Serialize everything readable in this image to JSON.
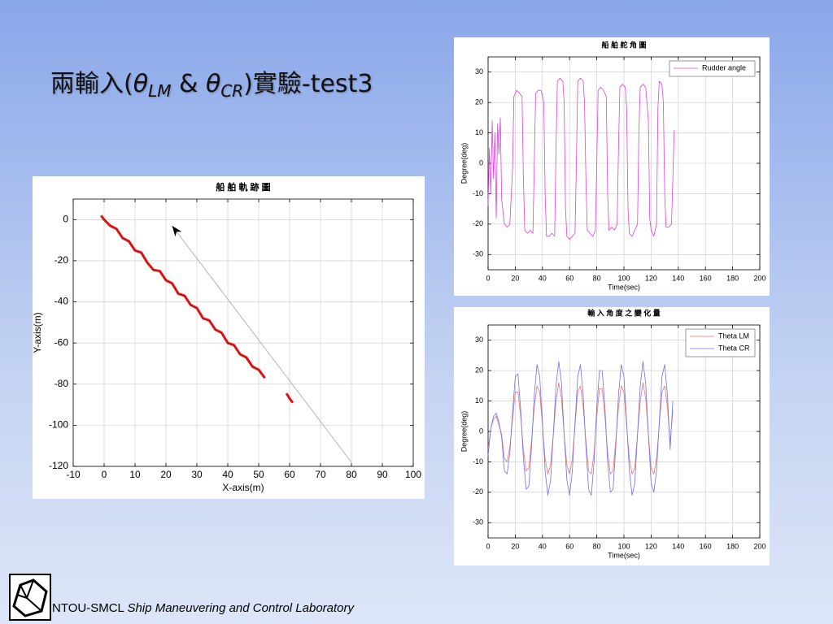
{
  "slide": {
    "title": [
      "兩輸入(",
      "θ",
      "LM",
      " & ",
      "θ",
      "CR",
      ")實驗-test3"
    ]
  },
  "footer": {
    "org": "NTOU-SMCL",
    "lab": "Ship Maneuvering and Control Laboratory"
  },
  "chart_data": [
    {
      "type": "line",
      "title": "船 舶 軌 跡 圖",
      "xlabel": "X-axis(m)",
      "ylabel": "Y-axis(m)",
      "xlim": [
        -10,
        100
      ],
      "xticks": [
        -10,
        0,
        10,
        20,
        30,
        40,
        50,
        60,
        70,
        80,
        90,
        100
      ],
      "ylim": [
        -120,
        10
      ],
      "yticks": [
        -120,
        -100,
        -80,
        -60,
        -40,
        -20,
        0
      ],
      "grid": true,
      "series": [
        {
          "color": "#dd1111",
          "x": [
            -1,
            0,
            2,
            4,
            6,
            8,
            10,
            12,
            14,
            16,
            18,
            20,
            22,
            24,
            26,
            28,
            30,
            32,
            34,
            36,
            38,
            40,
            42,
            44,
            46,
            48,
            50,
            52,
            56,
            59,
            60,
            61
          ],
          "values": [
            2,
            0,
            -3,
            -4.5,
            -9,
            -10.5,
            -15,
            -16,
            -21,
            -24.5,
            -25,
            -29.5,
            -31,
            -36,
            -37,
            -41.5,
            -43,
            -48,
            -49,
            -53.5,
            -55,
            -60,
            -61,
            -65.5,
            -67,
            -71.5,
            -73,
            -77,
            null,
            -84.5,
            -87,
            -89
          ]
        },
        {
          "color": "#999999",
          "marker": "arrow-end",
          "x": [
            80,
            22
          ],
          "values": [
            -118,
            -3
          ]
        }
      ]
    },
    {
      "type": "line",
      "title": "船 舶 舵 角 圖",
      "xlabel": "Time(sec)",
      "ylabel": "Degree(deg)",
      "xlim": [
        0,
        200
      ],
      "xticks": [
        0,
        20,
        40,
        60,
        80,
        100,
        120,
        140,
        160,
        180,
        200
      ],
      "ylim": [
        -35,
        35
      ],
      "yticks": [
        -30,
        -20,
        -10,
        0,
        10,
        20,
        30
      ],
      "grid": true,
      "legend": "upper right",
      "series": [
        {
          "name": "Rudder angle",
          "color": "#e040e0",
          "x": [
            0,
            1,
            2,
            3,
            4,
            5,
            6,
            7,
            8,
            9,
            10,
            12,
            14,
            16,
            18,
            19,
            21,
            23,
            25,
            26,
            27,
            29,
            31,
            33,
            34,
            35,
            37,
            39,
            41,
            42,
            43,
            45,
            47,
            49,
            50,
            51,
            53,
            55,
            56,
            57,
            58,
            60,
            62,
            64,
            65,
            66,
            68,
            70,
            71,
            72,
            73,
            75,
            77,
            79,
            80,
            81,
            83,
            85,
            87,
            88,
            89,
            91,
            93,
            95,
            96,
            97,
            99,
            101,
            102,
            103,
            104,
            106,
            108,
            110,
            111,
            112,
            114,
            116,
            118,
            119,
            120,
            122,
            124,
            125,
            126,
            128,
            129,
            130,
            131,
            133,
            135,
            136,
            137
          ],
          "values": [
            -14,
            5,
            -10,
            14,
            -5,
            10,
            -18,
            13,
            3,
            15,
            -12,
            -20,
            -21,
            -20,
            -2,
            22,
            24,
            23,
            22,
            -5,
            -22,
            -23,
            -22,
            -23,
            0,
            23,
            24,
            24,
            20,
            -10,
            -24,
            -24,
            -23,
            -24,
            5,
            27,
            28,
            27,
            20,
            -15,
            -24,
            -25,
            -24,
            -23,
            0,
            27,
            28,
            27,
            20,
            -5,
            -22,
            -23,
            -24,
            -22,
            0,
            24,
            25,
            24,
            22,
            -10,
            -22,
            -21,
            -22,
            -20,
            5,
            25,
            26,
            25,
            18,
            -15,
            -23,
            -24,
            -22,
            -20,
            10,
            25,
            26,
            25,
            14,
            -18,
            -22,
            -24,
            -20,
            18,
            27,
            26,
            20,
            -10,
            -21,
            -21,
            -20,
            -5,
            11
          ]
        }
      ]
    },
    {
      "type": "line",
      "title": "輸 入 角 度 之 變 化 量",
      "xlabel": "Time(sec)",
      "ylabel": "Degree(deg)",
      "xlim": [
        0,
        200
      ],
      "xticks": [
        0,
        20,
        40,
        60,
        80,
        100,
        120,
        140,
        160,
        180,
        200
      ],
      "ylim": [
        -35,
        35
      ],
      "yticks": [
        -30,
        -20,
        -10,
        0,
        10,
        20,
        30
      ],
      "grid": true,
      "legend": "upper right",
      "series": [
        {
          "name": "Theta LM",
          "color": "#f07070",
          "x": [
            0,
            2,
            4,
            6,
            8,
            10,
            12,
            14,
            16,
            18,
            20,
            22,
            24,
            26,
            28,
            30,
            32,
            34,
            36,
            38,
            40,
            42,
            44,
            46,
            48,
            50,
            52,
            54,
            56,
            58,
            60,
            62,
            64,
            66,
            68,
            70,
            72,
            74,
            76,
            78,
            80,
            82,
            84,
            86,
            88,
            90,
            92,
            94,
            96,
            98,
            100,
            102,
            104,
            106,
            108,
            110,
            112,
            114,
            116,
            118,
            120,
            122,
            124,
            126,
            128,
            130,
            132,
            134,
            136
          ],
          "values": [
            -6,
            1,
            4,
            5,
            2,
            -1,
            -9,
            -10,
            -5,
            4,
            13,
            13,
            5,
            -6,
            -13,
            -12,
            -3,
            8,
            15,
            13,
            2,
            -9,
            -14,
            -11,
            -1,
            10,
            16,
            11,
            -1,
            -11,
            -14,
            -9,
            2,
            13,
            15,
            8,
            -3,
            -13,
            -14,
            -7,
            5,
            14,
            14,
            5,
            -7,
            -14,
            -13,
            -3,
            8,
            15,
            13,
            2,
            -9,
            -14,
            -12,
            -1,
            10,
            16,
            11,
            -1,
            -12,
            -14,
            -9,
            2,
            13,
            15,
            8,
            -4,
            7
          ]
        },
        {
          "name": "Theta CR",
          "color": "#7070f0",
          "x": [
            0,
            2,
            4,
            6,
            8,
            10,
            12,
            14,
            16,
            18,
            20,
            22,
            24,
            26,
            28,
            30,
            32,
            34,
            36,
            38,
            40,
            42,
            44,
            46,
            48,
            50,
            52,
            54,
            56,
            58,
            60,
            62,
            64,
            66,
            68,
            70,
            72,
            74,
            76,
            78,
            80,
            82,
            84,
            86,
            88,
            90,
            92,
            94,
            96,
            98,
            100,
            102,
            104,
            106,
            108,
            110,
            112,
            114,
            116,
            118,
            120,
            122,
            124,
            126,
            128,
            130,
            132,
            134,
            136
          ],
          "values": [
            -8,
            1,
            5,
            6,
            3,
            -2,
            -13,
            -14,
            -7,
            6,
            18,
            19,
            7,
            -9,
            -19,
            -18,
            -5,
            12,
            22,
            18,
            3,
            -13,
            -21,
            -16,
            -1,
            15,
            23,
            16,
            -1,
            -16,
            -21,
            -13,
            3,
            18,
            22,
            12,
            -5,
            -19,
            -21,
            -10,
            8,
            20,
            20,
            8,
            -10,
            -20,
            -19,
            -5,
            12,
            22,
            18,
            3,
            -13,
            -21,
            -17,
            -1,
            15,
            23,
            16,
            -1,
            -17,
            -20,
            -13,
            3,
            18,
            22,
            12,
            -6,
            10
          ]
        }
      ]
    }
  ]
}
